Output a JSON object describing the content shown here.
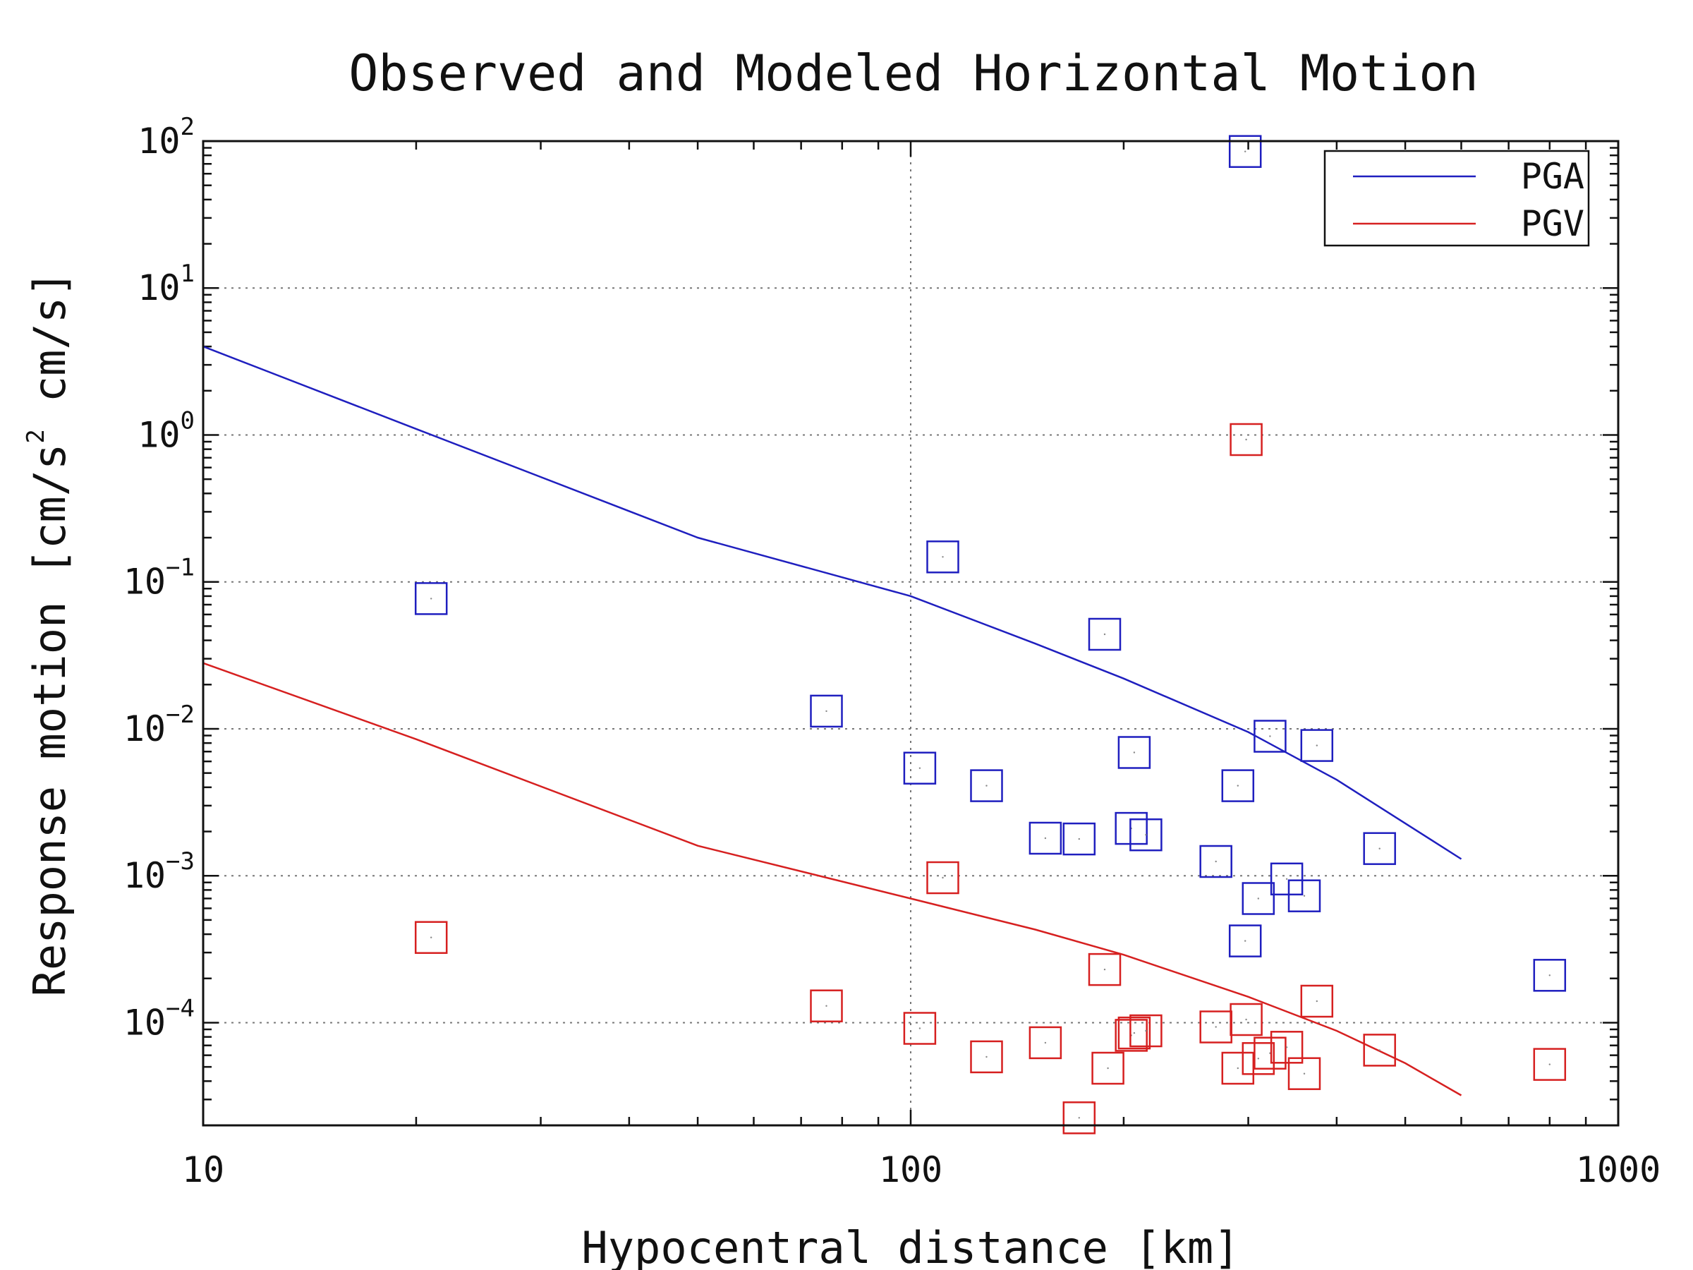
{
  "chart_data": {
    "type": "scatter",
    "title": "Observed and Modeled Horizontal Motion",
    "xlabel": "Hypocentral distance [km]",
    "ylabel": "Response motion [cm/s",
    "ylabel_sup": "2",
    "ylabel_rest": "cm/s]",
    "x_scale": "log",
    "y_scale": "log",
    "xlim": [
      10,
      1000
    ],
    "ylim": [
      2e-05,
      100
    ],
    "x_ticks": [
      {
        "value": 10,
        "label": "10"
      },
      {
        "value": 100,
        "label": "100"
      },
      {
        "value": 1000,
        "label": "1000"
      }
    ],
    "y_ticks": [
      {
        "value": 100,
        "base": "10",
        "exp": "2"
      },
      {
        "value": 10,
        "base": "10",
        "exp": "1"
      },
      {
        "value": 1,
        "base": "10",
        "exp": "0"
      },
      {
        "value": 0.1,
        "base": "10",
        "exp": "−1"
      },
      {
        "value": 0.01,
        "base": "10",
        "exp": "−2"
      },
      {
        "value": 0.001,
        "base": "10",
        "exp": "−3"
      },
      {
        "value": 0.0001,
        "base": "10",
        "exp": "−4"
      }
    ],
    "grid": true,
    "legend": {
      "position": "top-right",
      "entries": [
        {
          "label": "PGA",
          "color": "#1f1fbf"
        },
        {
          "label": "PGV",
          "color": "#d62020"
        }
      ]
    },
    "series": [
      {
        "name": "PGA",
        "kind": "model-line",
        "color": "#1f1fbf",
        "x": [
          10,
          20,
          50,
          100,
          150,
          200,
          300,
          400,
          600
        ],
        "y": [
          4.0,
          1.1,
          0.2,
          0.08,
          0.038,
          0.022,
          0.0095,
          0.0045,
          0.0013
        ]
      },
      {
        "name": "PGV",
        "kind": "model-line",
        "color": "#d62020",
        "x": [
          10,
          20,
          50,
          100,
          150,
          200,
          300,
          400,
          500,
          600
        ],
        "y": [
          0.028,
          0.0085,
          0.0016,
          0.0007,
          0.00043,
          0.00029,
          0.00015,
          8.8e-05,
          5.3e-05,
          3.2e-05
        ]
      },
      {
        "name": "PGA",
        "kind": "observed",
        "color": "#1f1fbf",
        "x": [
          21,
          76,
          103,
          111,
          128,
          155,
          173,
          188,
          205,
          207,
          215,
          270,
          290,
          297,
          297,
          310,
          322,
          340,
          360,
          375,
          460,
          800
        ],
        "y": [
          0.077,
          0.0132,
          0.0054,
          0.148,
          0.0041,
          0.0018,
          0.00178,
          0.044,
          0.0021,
          0.0069,
          0.0019,
          0.00125,
          0.0041,
          0.00036,
          85,
          0.0007,
          0.0089,
          0.00095,
          0.00073,
          0.0077,
          0.00153,
          0.00021
        ]
      },
      {
        "name": "PGV",
        "kind": "observed",
        "color": "#d62020",
        "x": [
          21,
          76,
          103,
          111,
          128,
          155,
          173,
          188,
          190,
          205,
          207,
          215,
          270,
          290,
          298,
          298,
          310,
          322,
          340,
          360,
          375,
          460,
          800
        ],
        "y": [
          0.00038,
          0.00013,
          9.15e-05,
          0.00097,
          5.85e-05,
          7.3e-05,
          2.25e-05,
          0.00023,
          4.9e-05,
          8.2e-05,
          8.5e-05,
          8.8e-05,
          9.35e-05,
          4.9e-05,
          0.000105,
          0.93,
          5.7e-05,
          6.2e-05,
          6.8e-05,
          4.5e-05,
          0.00014,
          6.5e-05,
          5.2e-05
        ]
      }
    ]
  }
}
